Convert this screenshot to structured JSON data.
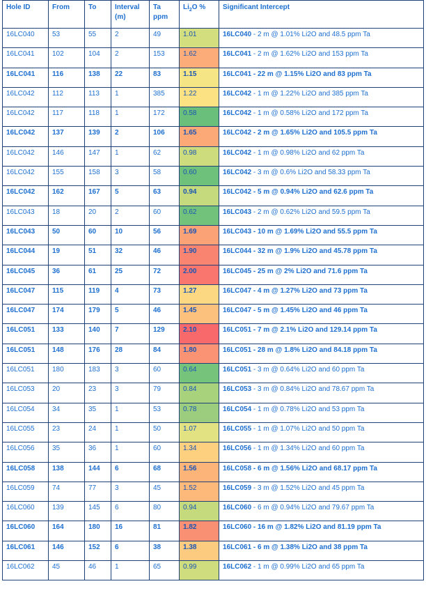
{
  "table": {
    "headers": {
      "hole_id": "Hole ID",
      "from": "From",
      "to": "To",
      "interval": "Interval (m)",
      "ta": "Ta ppm",
      "li2o_pre": "Li",
      "li2o_sub": "2",
      "li2o_post": "O %",
      "intercept": "Significant Intercept"
    },
    "rows": [
      {
        "hole": "16LC040",
        "from": "53",
        "to": "55",
        "interval": "2",
        "ta": "49",
        "li2o": "1.01",
        "color": "#d3de7e",
        "bold": false,
        "intercept_id": "16LC040",
        "intercept_text": " - 2 m @ 1.01% Li2O and 48.5 ppm Ta"
      },
      {
        "hole": "16LC041",
        "from": "102",
        "to": "104",
        "interval": "2",
        "ta": "153",
        "li2o": "1.62",
        "color": "#fcac78",
        "bold": false,
        "intercept_id": "16LC041",
        "intercept_text": " - 2 m @ 1.62% Li2O and 153 ppm Ta"
      },
      {
        "hole": "16LC041",
        "from": "116",
        "to": "138",
        "interval": "22",
        "ta": "83",
        "li2o": "1.15",
        "color": "#f5e584",
        "bold": true,
        "intercept_id": "16LC041",
        "intercept_text": " - 22 m @ 1.15% Li2O and 83 ppm Ta"
      },
      {
        "hole": "16LC042",
        "from": "112",
        "to": "113",
        "interval": "1",
        "ta": "385",
        "li2o": "1.22",
        "color": "#fde283",
        "bold": false,
        "intercept_id": "16LC042",
        "intercept_text": " - 1 m @ 1.22% Li2O and 385 ppm Ta"
      },
      {
        "hole": "16LC042",
        "from": "117",
        "to": "118",
        "interval": "1",
        "ta": "172",
        "li2o": "0.58",
        "color": "#6abf7b",
        "bold": false,
        "intercept_id": "16LC042",
        "intercept_text": " - 1 m @ 0.58% Li2O and 172 ppm Ta"
      },
      {
        "hole": "16LC042",
        "from": "137",
        "to": "139",
        "interval": "2",
        "ta": "106",
        "li2o": "1.65",
        "color": "#fca877",
        "bold": true,
        "intercept_id": "16LC042",
        "intercept_text": " - 2 m @ 1.65% Li2O and 105.5 ppm Ta"
      },
      {
        "hole": "16LC042",
        "from": "146",
        "to": "147",
        "interval": "1",
        "ta": "62",
        "li2o": "0.98",
        "color": "#cddd7e",
        "bold": false,
        "intercept_id": "16LC042",
        "intercept_text": " - 1 m @ 0.98% Li2O and 62 ppm Ta"
      },
      {
        "hole": "16LC042",
        "from": "155",
        "to": "158",
        "interval": "3",
        "ta": "58",
        "li2o": "0.60",
        "color": "#6ec17b",
        "bold": false,
        "intercept_id": "16LC042",
        "intercept_text": " - 3 m @ 0.6% Li2O and 58.33 ppm Ta"
      },
      {
        "hole": "16LC042",
        "from": "162",
        "to": "167",
        "interval": "5",
        "ta": "63",
        "li2o": "0.94",
        "color": "#c5da7d",
        "bold": true,
        "intercept_id": "16LC042",
        "intercept_text": " - 5 m @ 0.94% Li2O and 62.6 ppm Ta"
      },
      {
        "hole": "16LC043",
        "from": "18",
        "to": "20",
        "interval": "2",
        "ta": "60",
        "li2o": "0.62",
        "color": "#72c27b",
        "bold": false,
        "intercept_id": "16LC043",
        "intercept_text": " - 2 m @ 0.62% Li2O and 59.5 ppm Ta"
      },
      {
        "hole": "16LC043",
        "from": "50",
        "to": "60",
        "interval": "10",
        "ta": "56",
        "li2o": "1.69",
        "color": "#fba276",
        "bold": true,
        "intercept_id": "16LC043",
        "intercept_text": " - 10 m @ 1.69% Li2O and 55.5 ppm Ta"
      },
      {
        "hole": "16LC044",
        "from": "19",
        "to": "51",
        "interval": "32",
        "ta": "46",
        "li2o": "1.90",
        "color": "#f98570",
        "bold": true,
        "intercept_id": "16LC044",
        "intercept_text": " - 32 m @ 1.9% Li2O and 45.78 ppm Ta"
      },
      {
        "hole": "16LC045",
        "from": "36",
        "to": "61",
        "interval": "25",
        "ta": "72",
        "li2o": "2.00",
        "color": "#f8766d",
        "bold": true,
        "intercept_id": "16LC045",
        "intercept_text": " - 25 m @ 2% Li2O and 71.6 ppm Ta"
      },
      {
        "hole": "16LC047",
        "from": "115",
        "to": "119",
        "interval": "4",
        "ta": "73",
        "li2o": "1.27",
        "color": "#fdd882",
        "bold": true,
        "intercept_id": "16LC047",
        "intercept_text": " - 4 m @ 1.27% Li2O and 73 ppm Ta"
      },
      {
        "hole": "16LC047",
        "from": "174",
        "to": "179",
        "interval": "5",
        "ta": "46",
        "li2o": "1.45",
        "color": "#fcc27d",
        "bold": true,
        "intercept_id": "16LC047",
        "intercept_text": " - 5 m @ 1.45% Li2O and 46 ppm Ta"
      },
      {
        "hole": "16LC051",
        "from": "133",
        "to": "140",
        "interval": "7",
        "ta": "129",
        "li2o": "2.10",
        "color": "#f8696b",
        "bold": true,
        "intercept_id": "16LC051",
        "intercept_text": " - 7 m @ 2.1% Li2O and 129.14 ppm Ta"
      },
      {
        "hole": "16LC051",
        "from": "148",
        "to": "176",
        "interval": "28",
        "ta": "84",
        "li2o": "1.80",
        "color": "#fa9373",
        "bold": true,
        "intercept_id": "16LC051",
        "intercept_text": " - 28 m @ 1.8% Li2O and 84.18 ppm Ta"
      },
      {
        "hole": "16LC051",
        "from": "180",
        "to": "183",
        "interval": "3",
        "ta": "60",
        "li2o": "0.64",
        "color": "#76c37c",
        "bold": false,
        "intercept_id": "16LC051",
        "intercept_text": " - 3 m @ 0.64% Li2O and 60 ppm Ta"
      },
      {
        "hole": "16LC053",
        "from": "20",
        "to": "23",
        "interval": "3",
        "ta": "79",
        "li2o": "0.84",
        "color": "#a9d27d",
        "bold": false,
        "intercept_id": "16LC053",
        "intercept_text": " - 3 m @ 0.84% Li2O and 78.67 ppm Ta"
      },
      {
        "hole": "16LC054",
        "from": "34",
        "to": "35",
        "interval": "1",
        "ta": "53",
        "li2o": "0.78",
        "color": "#9ccd7e",
        "bold": false,
        "intercept_id": "16LC054",
        "intercept_text": " - 1 m @ 0.78% Li2O and 53 ppm Ta"
      },
      {
        "hole": "16LC055",
        "from": "23",
        "to": "24",
        "interval": "1",
        "ta": "50",
        "li2o": "1.07",
        "color": "#e2e282",
        "bold": false,
        "intercept_id": "16LC055",
        "intercept_text": " - 1 m @ 1.07% Li2O and 50 ppm Ta"
      },
      {
        "hole": "16LC056",
        "from": "35",
        "to": "36",
        "interval": "1",
        "ta": "60",
        "li2o": "1.34",
        "color": "#fdd080",
        "bold": false,
        "intercept_id": "16LC056",
        "intercept_text": " - 1 m @ 1.34% Li2O and 60 ppm Ta"
      },
      {
        "hole": "16LC058",
        "from": "138",
        "to": "144",
        "interval": "6",
        "ta": "68",
        "li2o": "1.56",
        "color": "#fcb479",
        "bold": true,
        "intercept_id": "16LC058",
        "intercept_text": " - 6 m @ 1.56% Li2O and 68.17 ppm Ta"
      },
      {
        "hole": "16LC059",
        "from": "74",
        "to": "77",
        "interval": "3",
        "ta": "45",
        "li2o": "1.52",
        "color": "#fcb97a",
        "bold": false,
        "intercept_id": "16LC059",
        "intercept_text": " - 3 m @ 1.52% Li2O and 45 ppm Ta"
      },
      {
        "hole": "16LC060",
        "from": "139",
        "to": "145",
        "interval": "6",
        "ta": "80",
        "li2o": "0.94",
        "color": "#c5da7d",
        "bold": false,
        "intercept_id": "16LC060",
        "intercept_text": " - 6 m @ 0.94% Li2O and 79.67 ppm Ta"
      },
      {
        "hole": "16LC060",
        "from": "164",
        "to": "180",
        "interval": "16",
        "ta": "81",
        "li2o": "1.82",
        "color": "#fa9073",
        "bold": true,
        "intercept_id": "16LC060",
        "intercept_text": " - 16 m @ 1.82% Li2O and 81.19 ppm Ta"
      },
      {
        "hole": "16LC061",
        "from": "146",
        "to": "152",
        "interval": "6",
        "ta": "38",
        "li2o": "1.38",
        "color": "#fdcb7f",
        "bold": true,
        "intercept_id": "16LC061",
        "intercept_text": " - 6 m @ 1.38% Li2O and 38 ppm Ta"
      },
      {
        "hole": "16LC062",
        "from": "45",
        "to": "46",
        "interval": "1",
        "ta": "65",
        "li2o": "0.99",
        "color": "#cfdd7e",
        "bold": false,
        "intercept_id": "16LC062",
        "intercept_text": " - 1 m @ 0.99% Li2O and 65 ppm Ta"
      }
    ]
  }
}
